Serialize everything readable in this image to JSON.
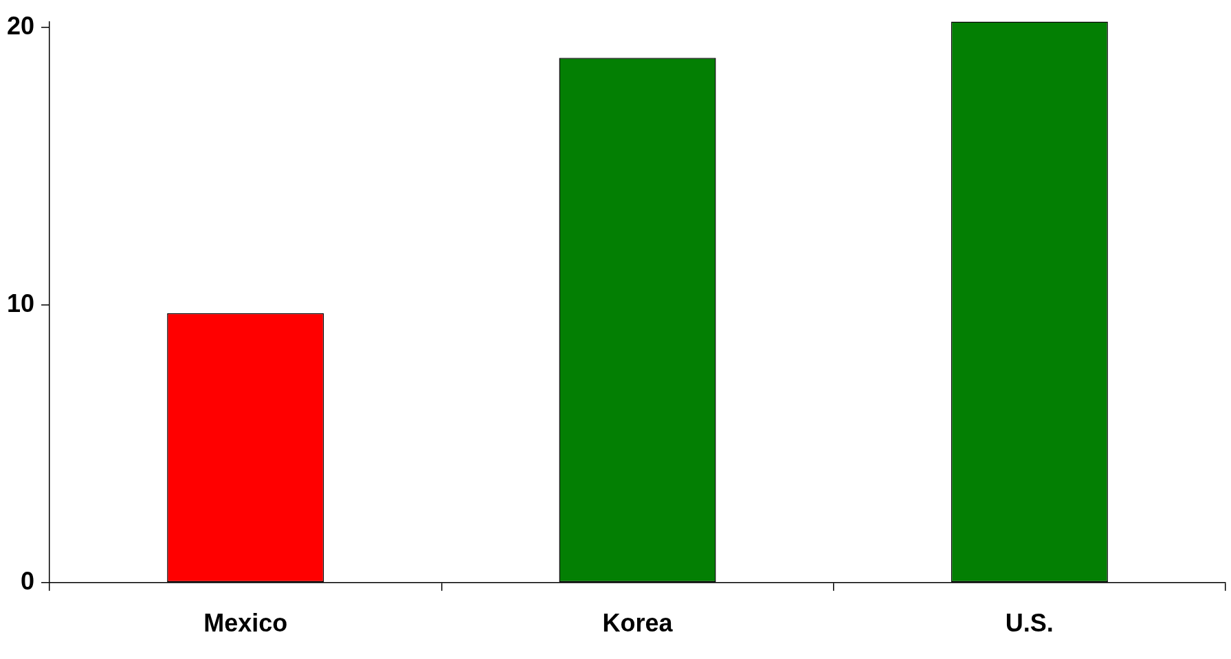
{
  "chart_data": {
    "type": "bar",
    "categories": [
      "Mexico",
      "Korea",
      "U.S."
    ],
    "values": [
      9.7,
      18.9,
      20.2
    ],
    "colors": [
      "#ff0000",
      "#037f03",
      "#037f03"
    ],
    "ylim": [
      0,
      20.2
    ],
    "yticks": [
      0,
      10,
      20
    ],
    "grid": false,
    "legend": false
  }
}
